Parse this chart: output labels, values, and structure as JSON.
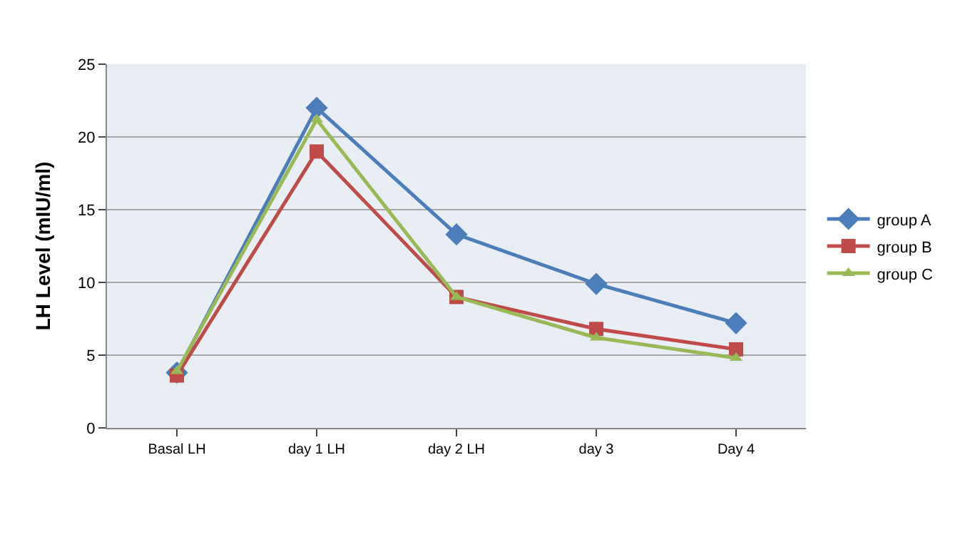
{
  "chart_data": {
    "type": "line",
    "ylabel": "LH Level (mIU/ml)",
    "categories": [
      "Basal LH",
      "day 1 LH",
      "day 2 LH",
      "day 3",
      "Day 4"
    ],
    "series": [
      {
        "name": "group A",
        "color": "#4a7ebb",
        "marker": "diamond",
        "values": [
          3.8,
          22,
          13.3,
          9.9,
          7.2
        ]
      },
      {
        "name": "group B",
        "color": "#be4b48",
        "marker": "square",
        "values": [
          3.6,
          19,
          9,
          6.8,
          5.4
        ]
      },
      {
        "name": "group C",
        "color": "#98b954",
        "marker": "triangle",
        "values": [
          3.9,
          21.2,
          9,
          6.2,
          4.8
        ]
      }
    ],
    "ylim": [
      0,
      25
    ],
    "yticks": [
      0,
      5,
      10,
      15,
      20,
      25
    ],
    "grid": "y",
    "legend": "right",
    "line_style": "solid"
  }
}
